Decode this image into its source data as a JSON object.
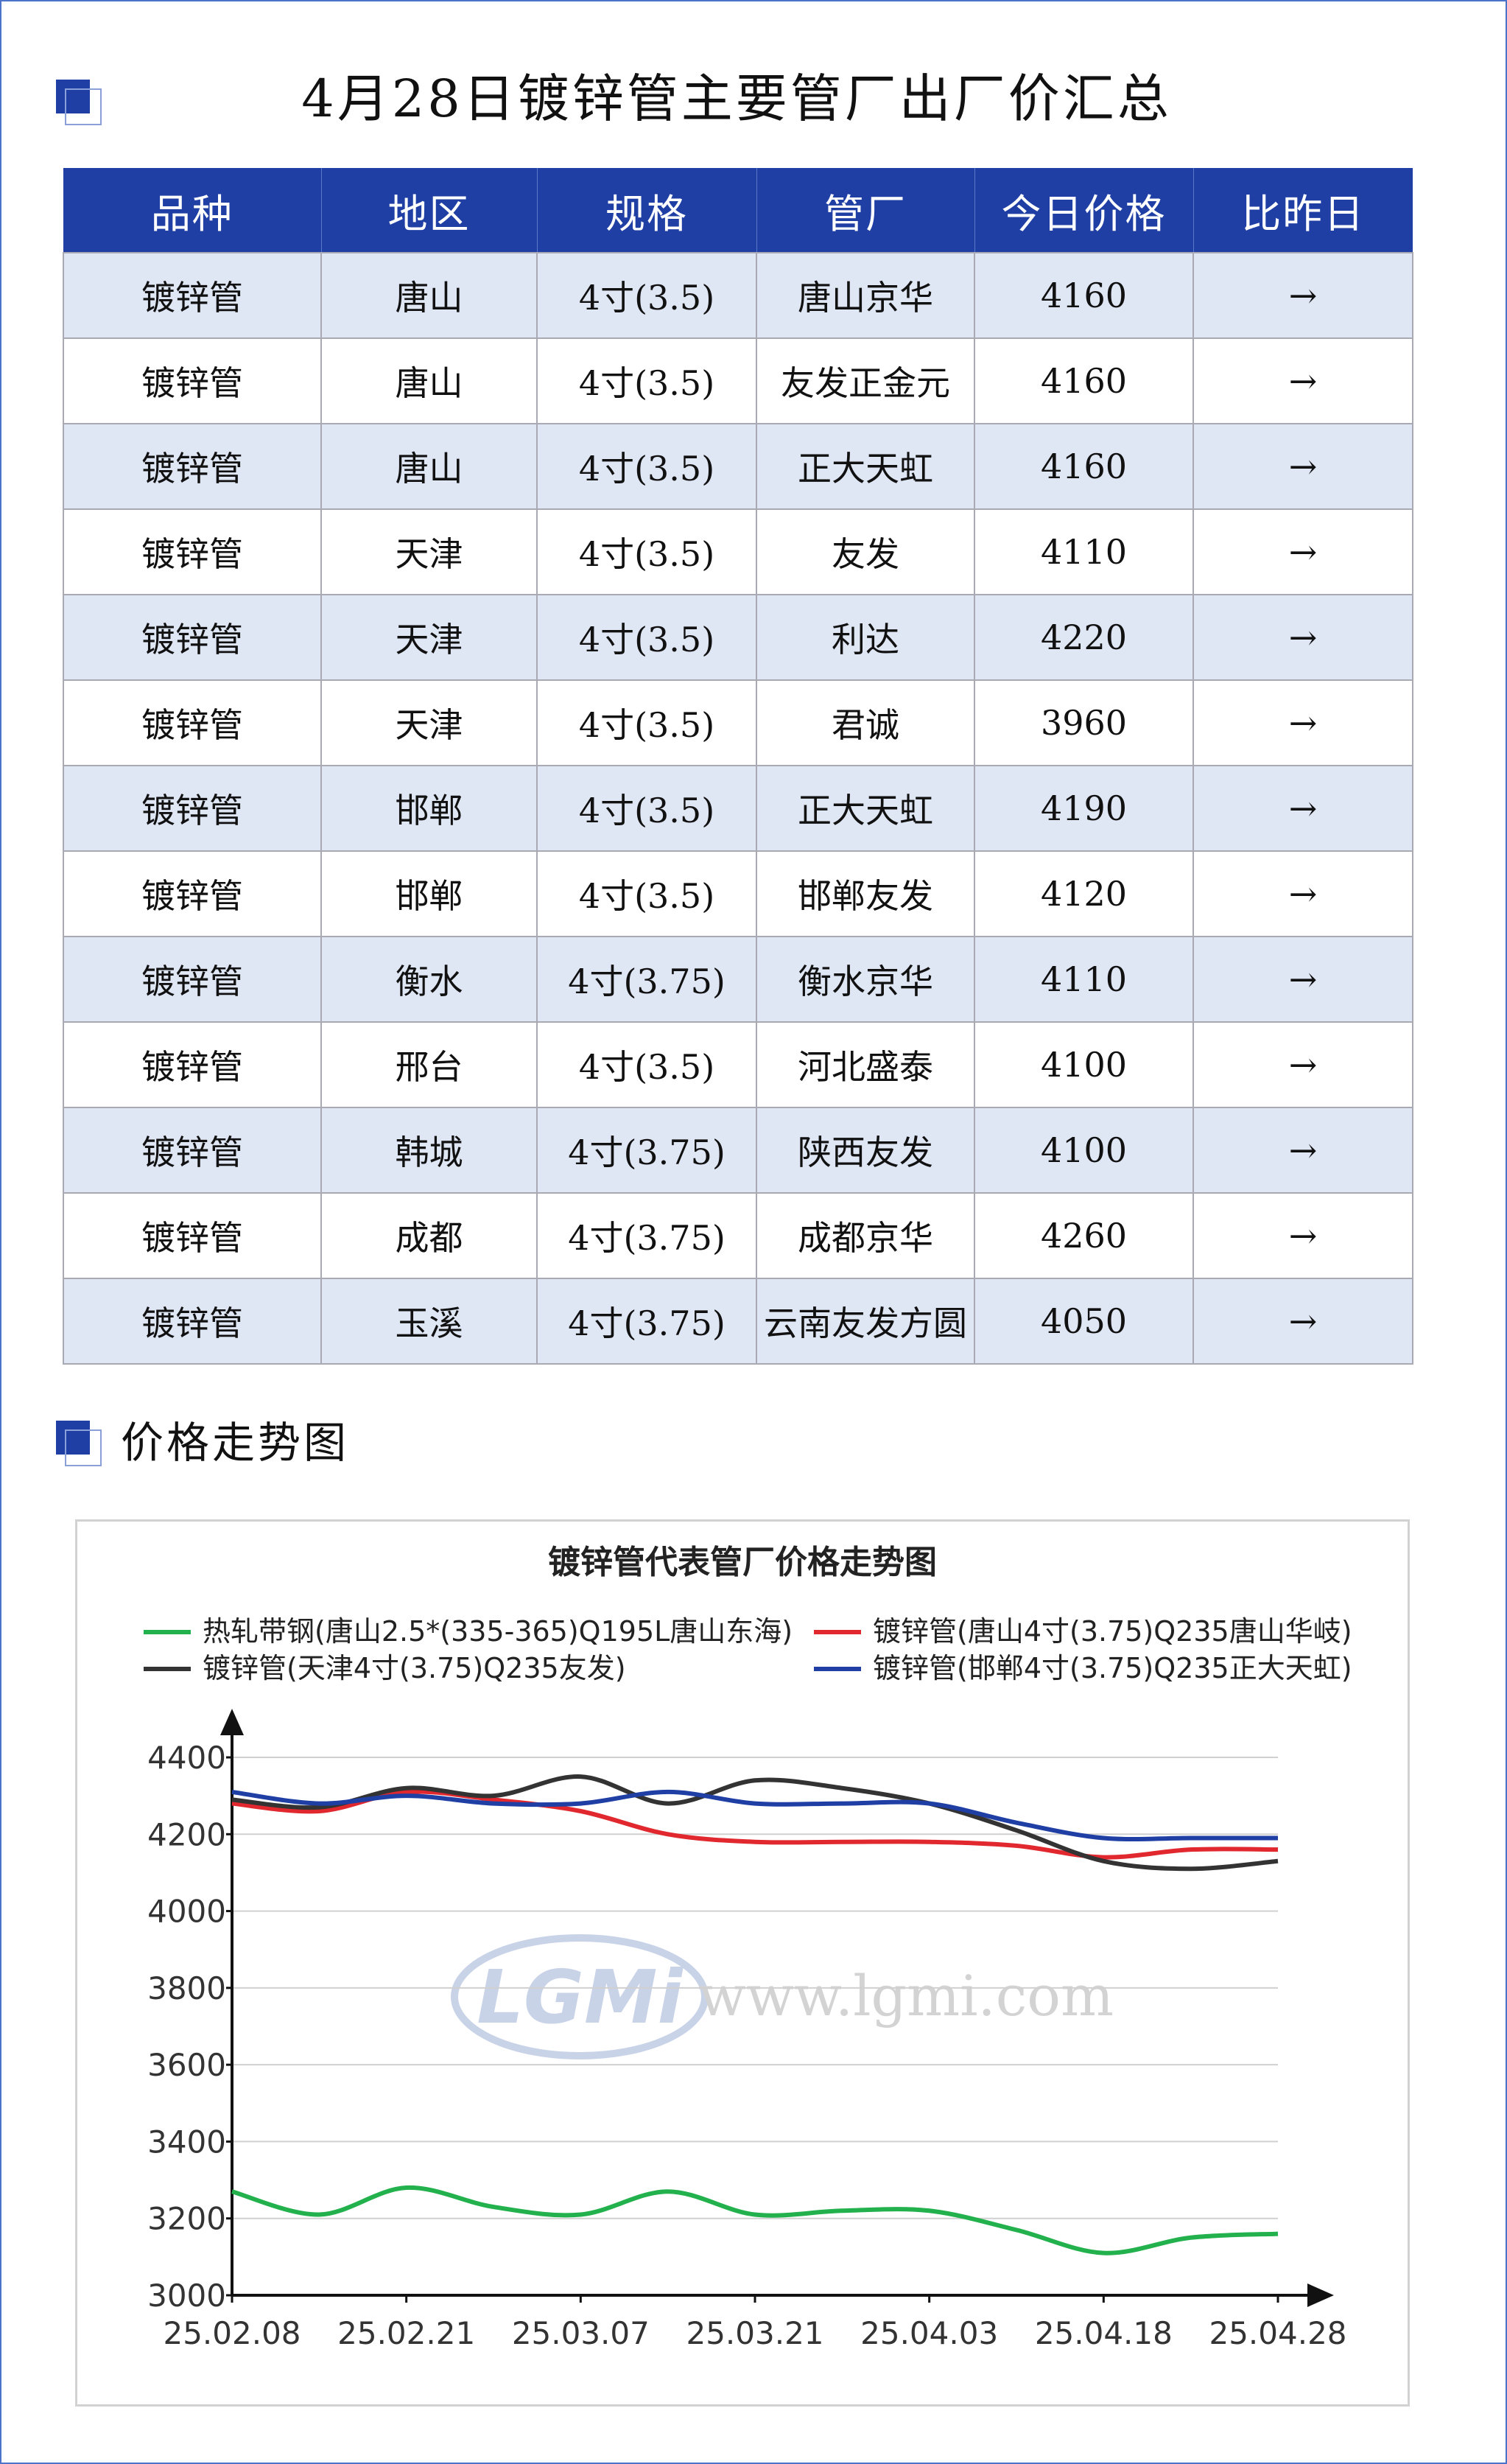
{
  "header": {
    "title": "4月28日镀锌管主要管厂出厂价汇总"
  },
  "table": {
    "columns": [
      "品种",
      "地区",
      "规格",
      "管厂",
      "今日价格",
      "比昨日"
    ],
    "rows": [
      [
        "镀锌管",
        "唐山",
        "4寸(3.5)",
        "唐山京华",
        "4160",
        "→"
      ],
      [
        "镀锌管",
        "唐山",
        "4寸(3.5)",
        "友发正金元",
        "4160",
        "→"
      ],
      [
        "镀锌管",
        "唐山",
        "4寸(3.5)",
        "正大天虹",
        "4160",
        "→"
      ],
      [
        "镀锌管",
        "天津",
        "4寸(3.5)",
        "友发",
        "4110",
        "→"
      ],
      [
        "镀锌管",
        "天津",
        "4寸(3.5)",
        "利达",
        "4220",
        "→"
      ],
      [
        "镀锌管",
        "天津",
        "4寸(3.5)",
        "君诚",
        "3960",
        "→"
      ],
      [
        "镀锌管",
        "邯郸",
        "4寸(3.5)",
        "正大天虹",
        "4190",
        "→"
      ],
      [
        "镀锌管",
        "邯郸",
        "4寸(3.5)",
        "邯郸友发",
        "4120",
        "→"
      ],
      [
        "镀锌管",
        "衡水",
        "4寸(3.75)",
        "衡水京华",
        "4110",
        "→"
      ],
      [
        "镀锌管",
        "邢台",
        "4寸(3.5)",
        "河北盛泰",
        "4100",
        "→"
      ],
      [
        "镀锌管",
        "韩城",
        "4寸(3.75)",
        "陕西友发",
        "4100",
        "→"
      ],
      [
        "镀锌管",
        "成都",
        "4寸(3.75)",
        "成都京华",
        "4260",
        "→"
      ],
      [
        "镀锌管",
        "玉溪",
        "4寸(3.75)",
        "云南友发方圆",
        "4050",
        "→"
      ]
    ]
  },
  "trend_section": {
    "title": "价格走势图"
  },
  "watermark": {
    "logo": "LGMi",
    "url": "www.lgmi.com"
  },
  "colors": {
    "header_bg": "#1f3fa5",
    "row_alt": "#dfe6f4",
    "green": "#22b14c",
    "red": "#e0282e",
    "black": "#333333",
    "blue": "#1f3fa5"
  },
  "chart_data": {
    "type": "line",
    "title": "镀锌管代表管厂价格走势图",
    "x_tick_labels": [
      "25.02.08",
      "25.02.21",
      "25.03.07",
      "25.03.21",
      "25.04.03",
      "25.04.18",
      "25.04.28"
    ],
    "ylim": [
      3000,
      4400
    ],
    "y_ticks": [
      3000,
      3200,
      3400,
      3600,
      3800,
      4000,
      4200,
      4400
    ],
    "grid": true,
    "legend_position": "top",
    "series": [
      {
        "name": "热轧带钢(唐山2.5*(335-365)Q195L唐山东海)",
        "color": "#22b14c",
        "points": [
          [
            0,
            3270
          ],
          [
            0.5,
            3210
          ],
          [
            1,
            3280
          ],
          [
            1.5,
            3230
          ],
          [
            2,
            3210
          ],
          [
            2.5,
            3270
          ],
          [
            3,
            3210
          ],
          [
            3.5,
            3220
          ],
          [
            4,
            3220
          ],
          [
            4.5,
            3170
          ],
          [
            5,
            3110
          ],
          [
            5.5,
            3150
          ],
          [
            6,
            3160
          ]
        ]
      },
      {
        "name": "镀锌管(唐山4寸(3.75)Q235唐山华岐)",
        "color": "#e0282e",
        "points": [
          [
            0,
            4280
          ],
          [
            0.5,
            4260
          ],
          [
            1,
            4310
          ],
          [
            1.5,
            4290
          ],
          [
            2,
            4260
          ],
          [
            2.5,
            4200
          ],
          [
            3,
            4180
          ],
          [
            3.5,
            4180
          ],
          [
            4,
            4180
          ],
          [
            4.5,
            4170
          ],
          [
            5,
            4140
          ],
          [
            5.5,
            4160
          ],
          [
            6,
            4160
          ]
        ]
      },
      {
        "name": "镀锌管(天津4寸(3.75)Q235友发)",
        "color": "#333333",
        "points": [
          [
            0,
            4290
          ],
          [
            0.5,
            4270
          ],
          [
            1,
            4320
          ],
          [
            1.5,
            4300
          ],
          [
            2,
            4350
          ],
          [
            2.5,
            4280
          ],
          [
            3,
            4340
          ],
          [
            3.5,
            4320
          ],
          [
            4,
            4280
          ],
          [
            4.5,
            4210
          ],
          [
            5,
            4130
          ],
          [
            5.5,
            4110
          ],
          [
            6,
            4130
          ]
        ]
      },
      {
        "name": "镀锌管(邯郸4寸(3.75)Q235正大天虹)",
        "color": "#1f3fa5",
        "points": [
          [
            0,
            4310
          ],
          [
            0.5,
            4280
          ],
          [
            1,
            4300
          ],
          [
            1.5,
            4280
          ],
          [
            2,
            4280
          ],
          [
            2.5,
            4310
          ],
          [
            3,
            4280
          ],
          [
            3.5,
            4280
          ],
          [
            4,
            4280
          ],
          [
            4.5,
            4230
          ],
          [
            5,
            4190
          ],
          [
            5.5,
            4190
          ],
          [
            6,
            4190
          ]
        ]
      }
    ]
  }
}
